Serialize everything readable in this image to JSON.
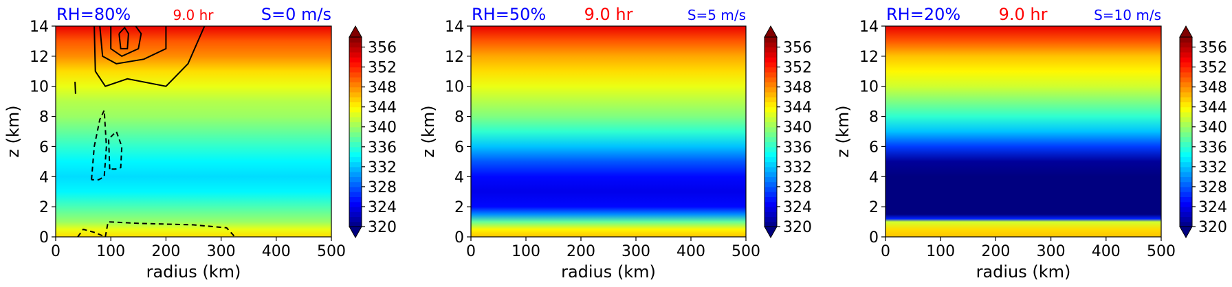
{
  "chart_data": [
    {
      "type": "heatmap",
      "title_left": "RH=80%",
      "title_center": "9.0 hr",
      "title_right": "S=0 m/s",
      "title_colors": {
        "left": "#0000ff",
        "center": "#ff0000",
        "right": "#0000ff"
      },
      "xlabel": "radius (km)",
      "ylabel": "z (km)",
      "xlim": [
        0,
        500
      ],
      "ylim": [
        0,
        14
      ],
      "x_ticks": [
        0,
        100,
        200,
        300,
        400,
        500
      ],
      "y_ticks": [
        0,
        2,
        4,
        6,
        8,
        10,
        12,
        14
      ],
      "colorbar": {
        "min": 320,
        "max": 358,
        "ticks": [
          320,
          324,
          328,
          332,
          336,
          340,
          344,
          348,
          352,
          356
        ],
        "colormap": "jet",
        "extend": "both"
      },
      "field_profile": [
        {
          "z": 0,
          "value": 345
        },
        {
          "z": 0.5,
          "value": 343
        },
        {
          "z": 1,
          "value": 340
        },
        {
          "z": 2,
          "value": 337
        },
        {
          "z": 3,
          "value": 334
        },
        {
          "z": 4,
          "value": 333
        },
        {
          "z": 5,
          "value": 334
        },
        {
          "z": 6,
          "value": 336
        },
        {
          "z": 7,
          "value": 338
        },
        {
          "z": 8,
          "value": 340
        },
        {
          "z": 9,
          "value": 341
        },
        {
          "z": 10,
          "value": 343
        },
        {
          "z": 11,
          "value": 345
        },
        {
          "z": 12,
          "value": 348
        },
        {
          "z": 13,
          "value": 350
        },
        {
          "z": 14,
          "value": 354
        }
      ],
      "contours": [
        {
          "style": "solid",
          "points": [
            [
              70,
              14
            ],
            [
              72,
              11
            ],
            [
              90,
              10
            ],
            [
              130,
              10.5
            ],
            [
              200,
              10
            ],
            [
              240,
              11.5
            ],
            [
              270,
              14
            ]
          ]
        },
        {
          "style": "solid",
          "points": [
            [
              80,
              14
            ],
            [
              85,
              12
            ],
            [
              110,
              11.5
            ],
            [
              160,
              11.8
            ],
            [
              200,
              12.5
            ],
            [
              200,
              14
            ]
          ]
        },
        {
          "style": "solid",
          "points": [
            [
              100,
              14
            ],
            [
              100,
              12.5
            ],
            [
              120,
              12
            ],
            [
              150,
              12.5
            ],
            [
              155,
              13.5
            ],
            [
              145,
              14
            ]
          ]
        },
        {
          "style": "solid",
          "points": [
            [
              115,
              13.5
            ],
            [
              118,
              12.5
            ],
            [
              130,
              12.5
            ],
            [
              132,
              13.5
            ],
            [
              125,
              13.9
            ],
            [
              115,
              13.5
            ]
          ]
        },
        {
          "style": "solid",
          "points": [
            [
              35,
              10.3
            ],
            [
              36,
              9.5
            ]
          ]
        },
        {
          "style": "dashed",
          "points": [
            [
              65,
              3.8
            ],
            [
              70,
              6
            ],
            [
              80,
              7.8
            ],
            [
              88,
              8.4
            ],
            [
              92,
              6
            ],
            [
              88,
              4
            ],
            [
              78,
              3.8
            ],
            [
              65,
              3.8
            ]
          ]
        },
        {
          "style": "dashed",
          "points": [
            [
              98,
              4.5
            ],
            [
              96,
              6.5
            ],
            [
              110,
              7
            ],
            [
              120,
              6
            ],
            [
              118,
              4.6
            ],
            [
              108,
              4.5
            ],
            [
              98,
              4.5
            ]
          ]
        },
        {
          "style": "dashed",
          "points": [
            [
              40,
              0
            ],
            [
              50,
              0.5
            ],
            [
              70,
              0.3
            ],
            [
              90,
              0
            ]
          ]
        },
        {
          "style": "dashed",
          "points": [
            [
              90,
              0
            ],
            [
              95,
              1
            ],
            [
              150,
              0.9
            ],
            [
              250,
              0.8
            ],
            [
              310,
              0.6
            ],
            [
              325,
              0
            ]
          ]
        }
      ]
    },
    {
      "type": "heatmap",
      "title_left": "RH=50%",
      "title_center": "9.0 hr",
      "title_right": "S=5 m/s",
      "title_colors": {
        "left": "#0000ff",
        "center": "#ff0000",
        "right": "#0000ff"
      },
      "xlabel": "radius (km)",
      "ylabel": "z (km)",
      "xlim": [
        0,
        500
      ],
      "ylim": [
        0,
        14
      ],
      "x_ticks": [
        0,
        100,
        200,
        300,
        400,
        500
      ],
      "y_ticks": [
        0,
        2,
        4,
        6,
        8,
        10,
        12,
        14
      ],
      "colorbar": {
        "min": 320,
        "max": 358,
        "ticks": [
          320,
          324,
          328,
          332,
          336,
          340,
          344,
          348,
          352,
          356
        ],
        "colormap": "jet",
        "extend": "both"
      },
      "field_profile": [
        {
          "z": 0,
          "value": 346
        },
        {
          "z": 0.5,
          "value": 344
        },
        {
          "z": 1,
          "value": 338
        },
        {
          "z": 1.5,
          "value": 330
        },
        {
          "z": 2,
          "value": 325
        },
        {
          "z": 3,
          "value": 324
        },
        {
          "z": 4,
          "value": 325
        },
        {
          "z": 5,
          "value": 328
        },
        {
          "z": 6,
          "value": 332
        },
        {
          "z": 7,
          "value": 336
        },
        {
          "z": 8,
          "value": 339
        },
        {
          "z": 9,
          "value": 341
        },
        {
          "z": 10,
          "value": 343
        },
        {
          "z": 11,
          "value": 345
        },
        {
          "z": 12,
          "value": 347
        },
        {
          "z": 13,
          "value": 350
        },
        {
          "z": 14,
          "value": 354
        }
      ],
      "contours": []
    },
    {
      "type": "heatmap",
      "title_left": "RH=20%",
      "title_center": "9.0 hr",
      "title_right": "S=10 m/s",
      "title_colors": {
        "left": "#0000ff",
        "center": "#ff0000",
        "right": "#0000ff"
      },
      "xlabel": "radius (km)",
      "ylabel": "z (km)",
      "xlim": [
        0,
        500
      ],
      "ylim": [
        0,
        14
      ],
      "x_ticks": [
        0,
        100,
        200,
        300,
        400,
        500
      ],
      "y_ticks": [
        0,
        2,
        4,
        6,
        8,
        10,
        12,
        14
      ],
      "colorbar": {
        "min": 320,
        "max": 358,
        "ticks": [
          320,
          324,
          328,
          332,
          336,
          340,
          344,
          348,
          352,
          356
        ],
        "colormap": "jet",
        "extend": "both"
      },
      "field_profile": [
        {
          "z": 0,
          "value": 346
        },
        {
          "z": 0.5,
          "value": 345
        },
        {
          "z": 1,
          "value": 342
        },
        {
          "z": 1.2,
          "value": 326
        },
        {
          "z": 1.5,
          "value": 319
        },
        {
          "z": 3,
          "value": 318
        },
        {
          "z": 4,
          "value": 318
        },
        {
          "z": 5,
          "value": 321
        },
        {
          "z": 6,
          "value": 327
        },
        {
          "z": 7,
          "value": 332
        },
        {
          "z": 8,
          "value": 336
        },
        {
          "z": 9,
          "value": 339
        },
        {
          "z": 10,
          "value": 342
        },
        {
          "z": 11,
          "value": 344
        },
        {
          "z": 12,
          "value": 346
        },
        {
          "z": 13,
          "value": 350
        },
        {
          "z": 14,
          "value": 354
        }
      ],
      "contours": []
    }
  ]
}
